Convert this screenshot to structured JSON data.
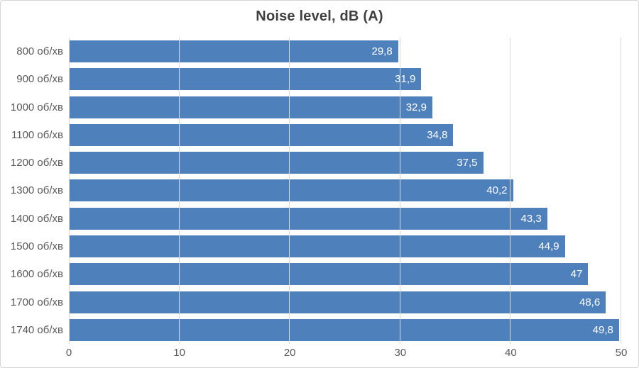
{
  "chart_data": {
    "type": "bar",
    "orientation": "horizontal",
    "title": "Noise level, dB (A)",
    "categories": [
      "800 об/хв",
      "900 об/хв",
      "1000 об/хв",
      "1100 об/хв",
      "1200 об/хв",
      "1300 об/хв",
      "1400 об/хв",
      "1500 об/хв",
      "1600 об/хв",
      "1700 об/хв",
      "1740 об/хв"
    ],
    "values": [
      29.8,
      31.9,
      32.9,
      34.8,
      37.5,
      40.2,
      43.3,
      44.9,
      47,
      48.6,
      49.8
    ],
    "value_labels": [
      "29,8",
      "31,9",
      "32,9",
      "34,8",
      "37,5",
      "40,2",
      "43,3",
      "44,9",
      "47",
      "48,6",
      "49,8"
    ],
    "x_ticks": [
      "0",
      "10",
      "20",
      "30",
      "40",
      "50"
    ],
    "xlim": [
      0,
      50
    ],
    "xlabel": "",
    "ylabel": "",
    "grid": true,
    "legend_position": "none",
    "bar_color": "#4e80bc",
    "gridline_color": "#d9d9d9",
    "axis_label_color": "#595959",
    "title_color": "#404040",
    "value_label_color": "#ffffff"
  }
}
